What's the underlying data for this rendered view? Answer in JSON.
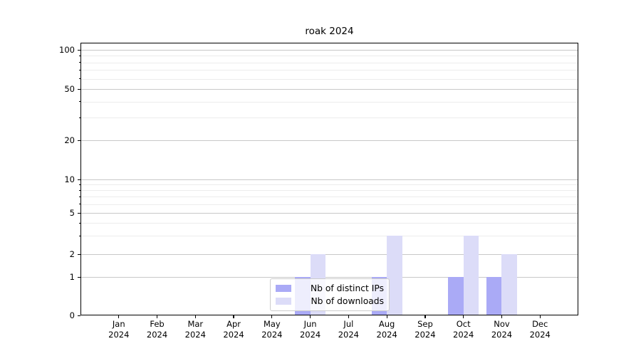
{
  "chart_data": {
    "type": "bar",
    "title": "roak 2024",
    "categories": [
      {
        "label": "Jan",
        "sub": "2024"
      },
      {
        "label": "Feb",
        "sub": "2024"
      },
      {
        "label": "Mar",
        "sub": "2024"
      },
      {
        "label": "Apr",
        "sub": "2024"
      },
      {
        "label": "May",
        "sub": "2024"
      },
      {
        "label": "Jun",
        "sub": "2024"
      },
      {
        "label": "Jul",
        "sub": "2024"
      },
      {
        "label": "Aug",
        "sub": "2024"
      },
      {
        "label": "Sep",
        "sub": "2024"
      },
      {
        "label": "Oct",
        "sub": "2024"
      },
      {
        "label": "Nov",
        "sub": "2024"
      },
      {
        "label": "Dec",
        "sub": "2024"
      }
    ],
    "series": [
      {
        "name": "Nb of distinct IPs",
        "color": "#aaaaf6",
        "values": [
          0,
          0,
          0,
          0,
          0,
          1,
          0,
          1,
          0,
          1,
          1,
          0
        ]
      },
      {
        "name": "Nb of downloads",
        "color": "#dcdcf8",
        "values": [
          0,
          0,
          0,
          0,
          0,
          2,
          0,
          3,
          0,
          3,
          2,
          0
        ]
      }
    ],
    "xlabel": "",
    "ylabel": "",
    "y_axis": {
      "scale": "log-like-1-2-5-with-zero",
      "range": [
        0,
        100
      ],
      "major_ticks": [
        0,
        1,
        2,
        5,
        10,
        20,
        50,
        100
      ],
      "minor_gridlines": [
        3,
        4,
        6,
        7,
        8,
        9,
        30,
        40,
        60,
        70,
        80,
        90
      ]
    },
    "grid": true,
    "legend": {
      "position": "lower-center",
      "entries": [
        "Nb of distinct IPs",
        "Nb of downloads"
      ]
    }
  },
  "colors": {
    "major_grid": "#c8c8c8",
    "minor_grid": "#ececec",
    "axis": "#000000",
    "legend_border": "#cccccc"
  }
}
